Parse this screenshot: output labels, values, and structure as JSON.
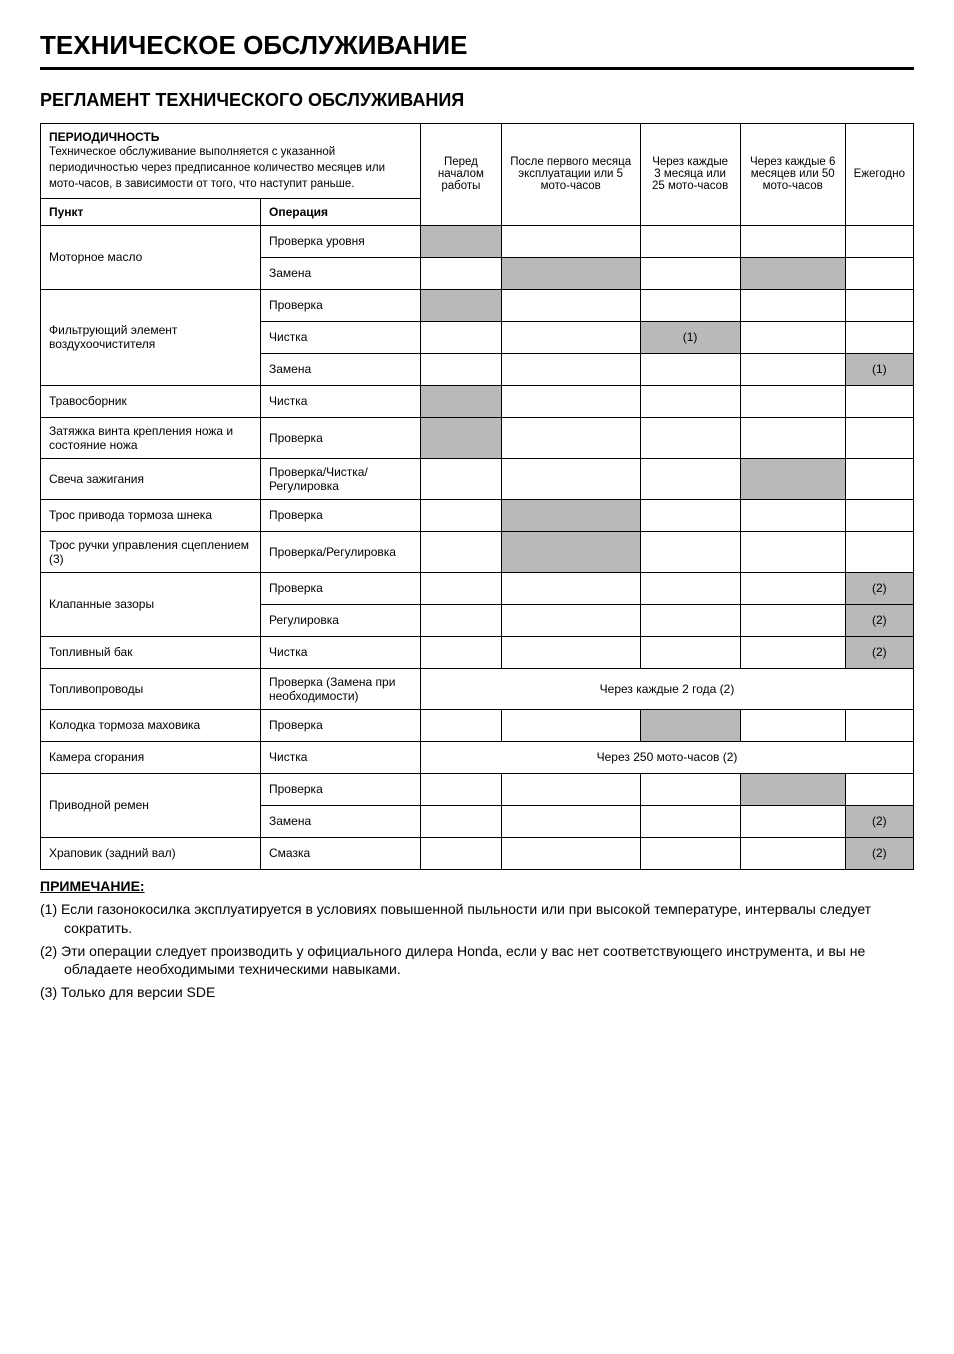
{
  "colors": {
    "shaded": "#b9b9b9",
    "background": "#ffffff",
    "border": "#000000",
    "text": "#000000"
  },
  "page_title": "ТЕХНИЧЕСКОЕ ОБСЛУЖИВАНИЕ",
  "section_title": "РЕГЛАМЕНТ ТЕХНИЧЕСКОГО ОБСЛУЖИВАНИЯ",
  "header": {
    "periodicity_bold": "ПЕРИОДИЧНОСТЬ",
    "periodicity_text": "Техническое обслуживание выполняется с указанной периодичностью через предписанное количество месяцев или мото-часов, в зависимости от того, что наступит раньше.",
    "col1": "Перед началом работы",
    "col2": "После первого месяца эксплуатации или 5 мото-часов",
    "col3": "Через каждые 3 месяца или 25 мото-часов",
    "col4": "Через каждые 6 месяцев или 50 мото-часов",
    "col5": "Ежегодно",
    "sub_item": "Пункт",
    "sub_op": "Операция"
  },
  "rows": {
    "r1_item": "Моторное масло",
    "r1a_op": "Проверка уровня",
    "r1b_op": "Замена",
    "r2_item": "Фильтрующий элемент воздухоочистителя",
    "r2a_op": "Проверка",
    "r2b_op": "Чистка",
    "r2b_note": "(1)",
    "r2c_op": "Замена",
    "r2c_note": "(1)",
    "r3_item": "Травосборник",
    "r3_op": "Чистка",
    "r4_item": "Затяжка винта крепления ножа и состояние ножа",
    "r4_op": "Проверка",
    "r5_item": "Свеча зажигания",
    "r5_op": "Проверка/Чистка/ Регулировка",
    "r6_item": "Трос привода тормоза шнека",
    "r6_op": "Проверка",
    "r7_item": "Трос ручки управления сцеплением (3)",
    "r7_op": "Проверка/Регулировка",
    "r8_item": "Клапанные зазоры",
    "r8a_op": "Проверка",
    "r8a_note": "(2)",
    "r8b_op": "Регулировка",
    "r8b_note": "(2)",
    "r9_item": "Топливный бак",
    "r9_op": "Чистка",
    "r9_note": "(2)",
    "r10_item": "Топливопроводы",
    "r10_op": "Проверка (Замена при необходимости)",
    "r10_span": "Через каждые 2 года (2)",
    "r11_item": "Колодка тормоза маховика",
    "r11_op": "Проверка",
    "r12_item": "Камера сгорания",
    "r12_op": "Чистка",
    "r12_span": "Через 250 мото-часов (2)",
    "r13_item": "Приводной ремен",
    "r13a_op": "Проверка",
    "r13b_op": "Замена",
    "r13b_note": "(2)",
    "r14_item": "Храповик (задний вал)",
    "r14_op": "Смазка",
    "r14_note": "(2)"
  },
  "notes": {
    "heading": "ПРИМЕЧАНИЕ:",
    "n1": "(1) Если газонокосилка эксплуатируется в условиях повышенной пыльности или при высокой температуре, интервалы следует сократить.",
    "n2": "(2) Эти операции следует производить у официального дилера Honda, если у вас нет соответствующего инструмента, и вы не обладаете необходимыми техническими навыками.",
    "n3": "(3) Только для версии SDE"
  }
}
